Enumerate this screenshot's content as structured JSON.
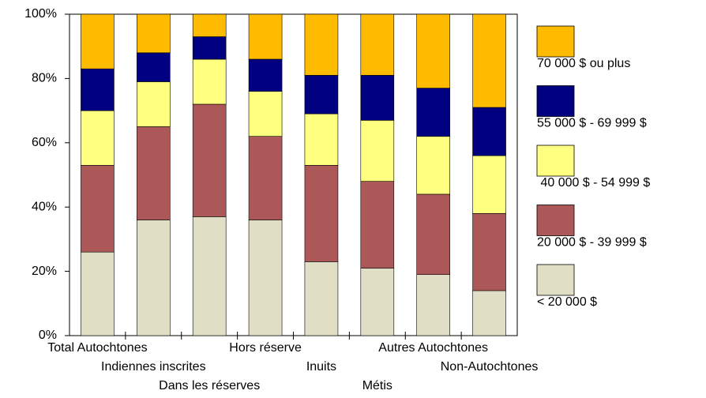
{
  "chart_data": {
    "type": "stacked-bar",
    "categories": [
      "Total Autochtones",
      "Indiennes inscrites",
      "Dans les réserves",
      "Hors réserve",
      "Inuits",
      "Métis",
      "Autres Autochtones",
      "Non-Autochtones"
    ],
    "series": [
      {
        "name": "< 20 000 $",
        "color": "#e0dec4",
        "values": [
          26,
          36,
          37,
          36,
          23,
          21,
          19,
          14
        ]
      },
      {
        "name": "20 000 $ - 39 999 $",
        "color": "#ad5858",
        "values": [
          27,
          29,
          35,
          26,
          30,
          27,
          25,
          24
        ]
      },
      {
        "name": " 40 000 $ - 54 999 $",
        "color": "#ffff80",
        "values": [
          17,
          14,
          14,
          14,
          16,
          19,
          18,
          18
        ]
      },
      {
        "name": "55 000 $ - 69 999 $",
        "color": "#000080",
        "values": [
          13,
          9,
          7,
          10,
          12,
          14,
          15,
          15
        ]
      },
      {
        "name": "70 000 $ ou plus",
        "color": "#ffbb00",
        "values": [
          17,
          12,
          7,
          14,
          19,
          19,
          23,
          29
        ]
      }
    ],
    "ylim": [
      0,
      100
    ],
    "yticks": [
      {
        "value": 0,
        "label": "0%"
      },
      {
        "value": 20,
        "label": "20%"
      },
      {
        "value": 40,
        "label": "40%"
      },
      {
        "value": 60,
        "label": "60%"
      },
      {
        "value": 80,
        "label": "80%"
      },
      {
        "value": 100,
        "label": "100%"
      }
    ]
  }
}
